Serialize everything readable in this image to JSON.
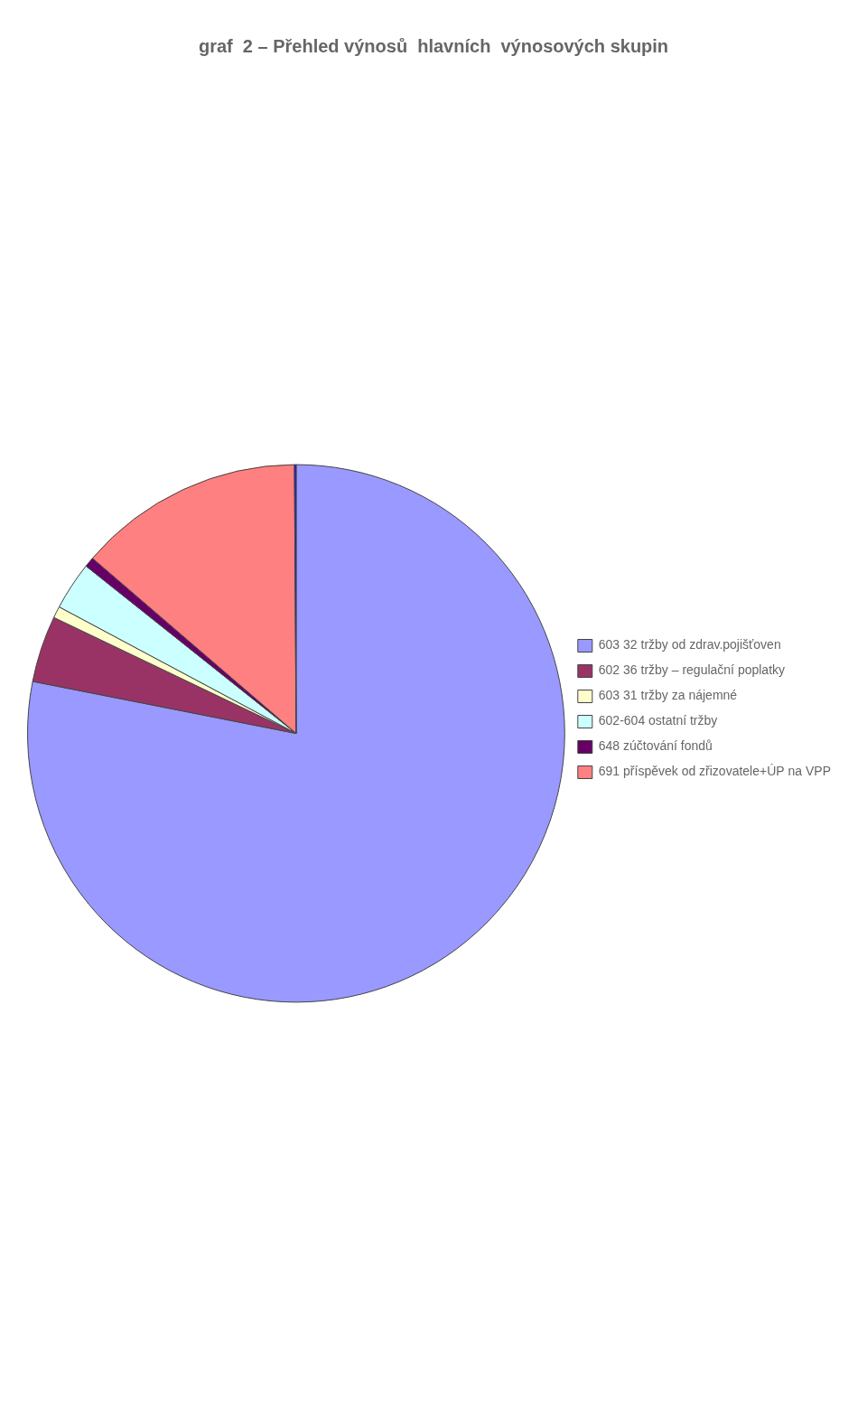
{
  "chart_data": {
    "type": "pie",
    "title": "graf  2 – Přehled výnosů  hlavních  výnosových skupin",
    "categories": [
      "603 32 tržby od zdrav.pojišťoven",
      "602 36 tržby – regulační poplatky",
      "603 31 tržby za nájemné",
      "602-604 ostatní tržby",
      "648 zúčtování fondů",
      "691 příspěvek od zřizovatele+ÚP na VPP",
      null
    ],
    "values": [
      78.1,
      4.0,
      0.7,
      2.9,
      0.6,
      13.6,
      0.1
    ],
    "colors": [
      "#9999FF",
      "#993366",
      "#FFFFCC",
      "#CCFFFF",
      "#660066",
      "#FF8080",
      "#0000FF"
    ],
    "legend": "right"
  }
}
